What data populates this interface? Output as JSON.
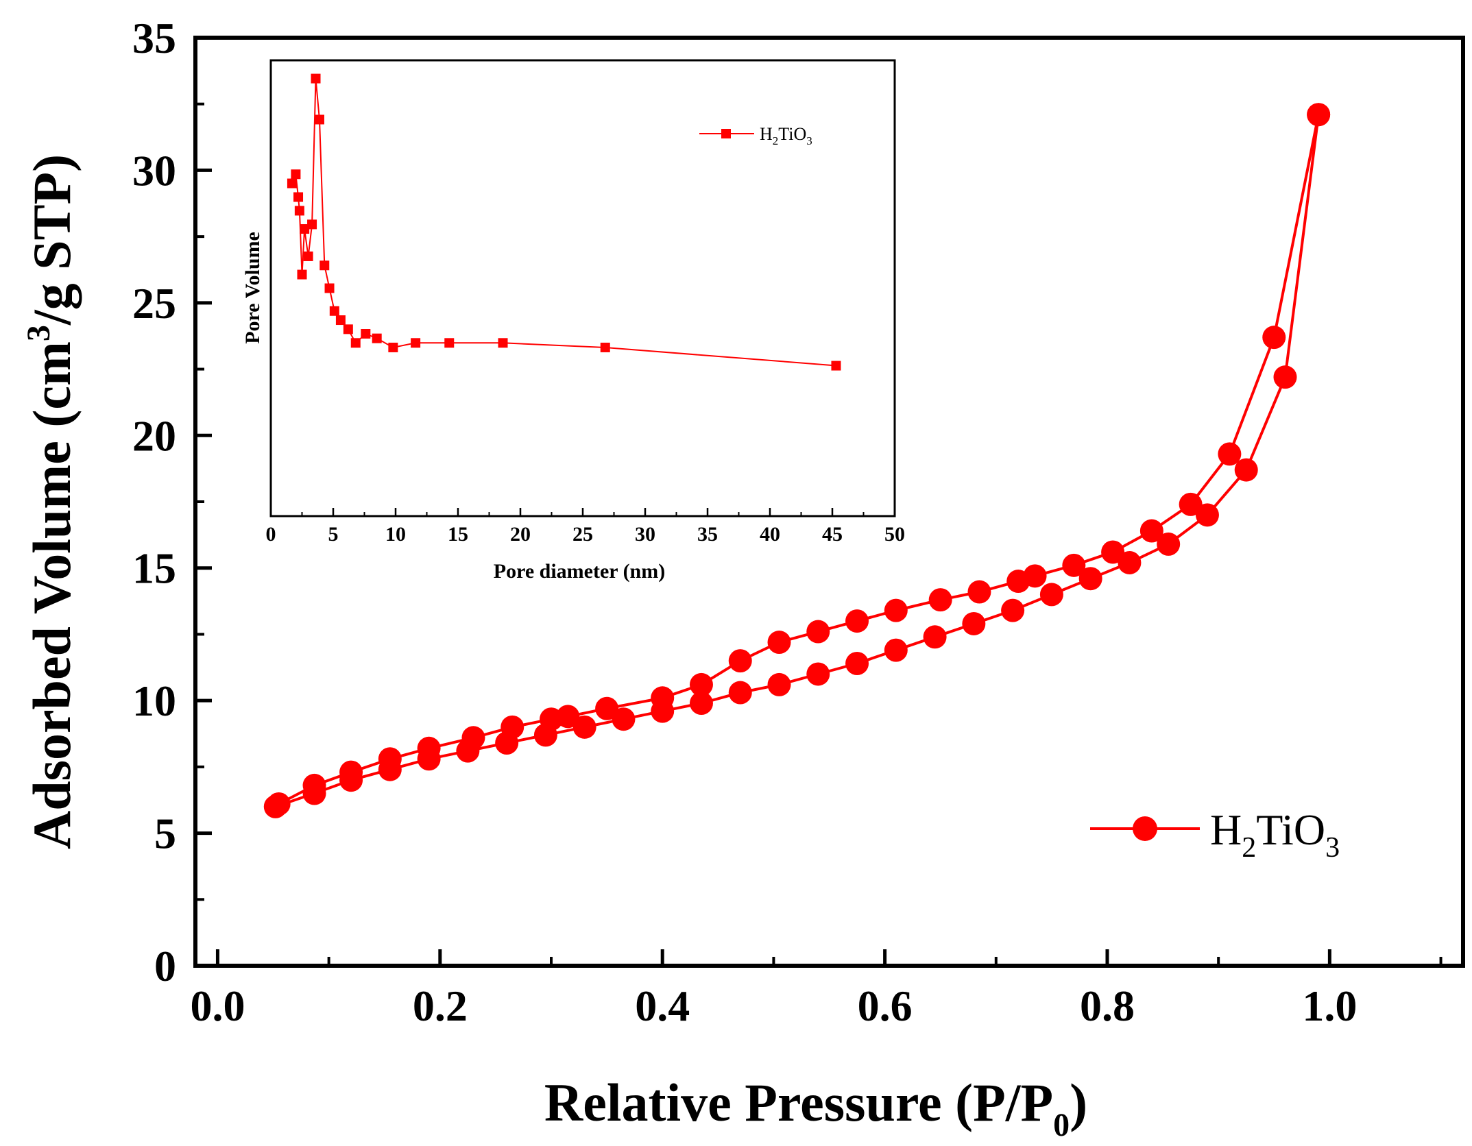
{
  "colors": {
    "series": "#ff0000",
    "axis": "#000000",
    "background": "#ffffff"
  },
  "chart_data": [
    {
      "type": "line",
      "xlabel": "Relative Pressure (P/P0)",
      "xlabel_parts": {
        "main": "Relative Pressure (P/P",
        "sub": "0",
        "close": ")"
      },
      "ylabel": "Adsorbed Volume (cm3/g STP)",
      "ylabel_parts": {
        "main": "Adsorbed Volume (cm",
        "sup": "3",
        "rest": "/g STP)"
      },
      "xlim": [
        -0.02,
        1.12
      ],
      "ylim": [
        0,
        35
      ],
      "xticks": [
        {
          "value": 0.0,
          "label": "0.0"
        },
        {
          "value": 0.2,
          "label": "0.2"
        },
        {
          "value": 0.4,
          "label": "0.4"
        },
        {
          "value": 0.6,
          "label": "0.6"
        },
        {
          "value": 0.8,
          "label": "0.8"
        },
        {
          "value": 1.0,
          "label": "1.0"
        }
      ],
      "yticks": [
        {
          "value": 0,
          "label": "0"
        },
        {
          "value": 5,
          "label": "5"
        },
        {
          "value": 10,
          "label": "10"
        },
        {
          "value": 15,
          "label": "15"
        },
        {
          "value": 20,
          "label": "20"
        },
        {
          "value": 25,
          "label": "25"
        },
        {
          "value": 30,
          "label": "30"
        },
        {
          "value": 35,
          "label": "35"
        }
      ],
      "legend": {
        "placement": "bottom-right",
        "label_main": "H",
        "label_sub1": "2",
        "label_mid": "TiO",
        "label_sub2": "3"
      },
      "series": [
        {
          "name": "H2TiO3",
          "x": [
            0.052,
            0.087,
            0.12,
            0.155,
            0.19,
            0.225,
            0.26,
            0.295,
            0.33,
            0.365,
            0.4,
            0.435,
            0.47,
            0.505,
            0.54,
            0.575,
            0.61,
            0.645,
            0.68,
            0.715,
            0.75,
            0.785,
            0.82,
            0.855,
            0.89,
            0.925,
            0.96,
            0.99
          ],
          "y": [
            6.0,
            6.5,
            7.0,
            7.4,
            7.8,
            8.1,
            8.4,
            8.7,
            9.0,
            9.3,
            9.6,
            9.9,
            10.3,
            10.6,
            11.0,
            11.4,
            11.9,
            12.4,
            12.9,
            13.4,
            14.0,
            14.6,
            15.2,
            15.9,
            17.0,
            18.7,
            22.2,
            32.1
          ]
        },
        {
          "name": "H2TiO3",
          "x": [
            0.99,
            0.95,
            0.91,
            0.875,
            0.84,
            0.805,
            0.77,
            0.735,
            0.72,
            0.685,
            0.65,
            0.61,
            0.575,
            0.54,
            0.505,
            0.47,
            0.435,
            0.4,
            0.35,
            0.315,
            0.3,
            0.265,
            0.23,
            0.19,
            0.155,
            0.12,
            0.087,
            0.055
          ],
          "y": [
            32.1,
            23.7,
            19.3,
            17.4,
            16.4,
            15.6,
            15.1,
            14.7,
            14.5,
            14.1,
            13.8,
            13.4,
            13.0,
            12.6,
            12.2,
            11.5,
            10.6,
            10.1,
            9.7,
            9.4,
            9.3,
            9.0,
            8.6,
            8.2,
            7.8,
            7.3,
            6.8,
            6.1
          ]
        }
      ]
    },
    {
      "type": "line",
      "xlabel": "Pore diameter (nm)",
      "ylabel": "Pore Volume",
      "xlim": [
        0,
        50
      ],
      "ylim": [
        0,
        1
      ],
      "xticks": [
        {
          "value": 0,
          "label": "0"
        },
        {
          "value": 5,
          "label": "5"
        },
        {
          "value": 10,
          "label": "10"
        },
        {
          "value": 15,
          "label": "15"
        },
        {
          "value": 20,
          "label": "20"
        },
        {
          "value": 25,
          "label": "25"
        },
        {
          "value": 30,
          "label": "30"
        },
        {
          "value": 35,
          "label": "35"
        },
        {
          "value": 40,
          "label": "40"
        },
        {
          "value": 45,
          "label": "45"
        },
        {
          "value": 50,
          "label": "50"
        }
      ],
      "legend": {
        "placement": "top-right",
        "label_main": "H",
        "label_sub1": "2",
        "label_mid": "TiO",
        "label_sub2": "3"
      },
      "series": [
        {
          "name": "H2TiO3",
          "x": [
            1.7,
            2.0,
            2.2,
            2.3,
            2.5,
            2.7,
            3.0,
            3.3,
            3.6,
            3.9,
            4.3,
            4.7,
            5.1,
            5.6,
            6.2,
            6.8,
            7.6,
            8.5,
            9.8,
            11.6,
            14.3,
            18.6,
            26.8,
            45.3
          ],
          "y": [
            0.73,
            0.75,
            0.7,
            0.67,
            0.53,
            0.63,
            0.57,
            0.64,
            0.96,
            0.87,
            0.55,
            0.5,
            0.45,
            0.43,
            0.41,
            0.38,
            0.4,
            0.39,
            0.37,
            0.38,
            0.38,
            0.38,
            0.37,
            0.33
          ]
        }
      ]
    }
  ]
}
